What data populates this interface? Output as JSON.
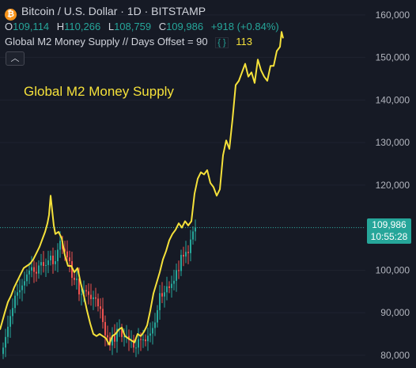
{
  "header": {
    "symbol_title": "Bitcoin / U.S. Dollar · 1D · BITSTAMP",
    "icon": "bitcoin-logo-icon",
    "ohlc": {
      "open_label": "O",
      "open": "109,114",
      "high_label": "H",
      "high": "110,266",
      "low_label": "L",
      "low": "108,759",
      "close_label": "C",
      "close": "109,986",
      "change": "+918 (+0.84%)"
    }
  },
  "indicator": {
    "label": "Global M2 Money Supply // Days Offset = 90",
    "settings_icon": "braces-icon",
    "value": "113"
  },
  "collapse_icon": "chevron-up-icon",
  "annotation": "Global M2 Money Supply",
  "price_tag": {
    "price": "109,986",
    "countdown": "10:55:28"
  },
  "colors": {
    "background": "#161a25",
    "up": "#26a69a",
    "down": "#ef5350",
    "m2_line": "#f5e13a",
    "text": "#d1d4dc"
  },
  "chart_data": {
    "type": "line",
    "yaxis_ticks": [
      80000,
      90000,
      100000,
      110000,
      120000,
      130000,
      140000,
      150000,
      160000
    ],
    "yaxis_tick_labels": [
      "80,000",
      "90,000",
      "100,000",
      "110,000",
      "120,000",
      "130,000",
      "140,000",
      "150,000",
      "160,000"
    ],
    "ylim": [
      77000,
      163500
    ],
    "axis_side": "right",
    "last_price": 109986,
    "series": [
      {
        "name": "Global M2 Money Supply",
        "type": "line",
        "color": "#f5e13a",
        "x": [
          0,
          3,
          6,
          10,
          14,
          18,
          22,
          26,
          30,
          34,
          38,
          42,
          46,
          50,
          54,
          57,
          60,
          62,
          64,
          66,
          68,
          70,
          74,
          78,
          82,
          86,
          90,
          94,
          98,
          102,
          106,
          110,
          114,
          118,
          122,
          126,
          130,
          134,
          138,
          142,
          146,
          150,
          154,
          158,
          162,
          166,
          170,
          174,
          178,
          182,
          186,
          190,
          194,
          198,
          202,
          206,
          210,
          214,
          218,
          222,
          226,
          230,
          234,
          238,
          242,
          246,
          250,
          254,
          258,
          262,
          266,
          270,
          274,
          278,
          282,
          286,
          290,
          294,
          298,
          302,
          306,
          310,
          314,
          318,
          322,
          326,
          330,
          334,
          338,
          342,
          346,
          350,
          354,
          356,
          358
        ],
        "values": [
          86000,
          88000,
          90000,
          92500,
          94000,
          96000,
          97500,
          99000,
          100500,
          101000,
          101500,
          102500,
          104000,
          105500,
          107500,
          109000,
          111000,
          113000,
          117500,
          114000,
          110500,
          108500,
          109000,
          107500,
          103500,
          101000,
          101000,
          99500,
          100500,
          97000,
          94000,
          90500,
          87500,
          85000,
          84500,
          85000,
          84500,
          84000,
          82500,
          84500,
          85000,
          86000,
          86500,
          84500,
          84000,
          83500,
          83000,
          85000,
          84500,
          85500,
          87000,
          90500,
          94500,
          97000,
          99500,
          102500,
          104500,
          107000,
          108500,
          109500,
          111000,
          110000,
          111500,
          110500,
          111500,
          118000,
          121500,
          123000,
          122500,
          123500,
          120500,
          119500,
          117500,
          119000,
          127000,
          130500,
          128500,
          135500,
          143500,
          144500,
          146500,
          148500,
          145500,
          146500,
          144000,
          149500,
          147000,
          145500,
          144500,
          148000,
          148000,
          151500,
          152500,
          156000,
          154500
        ]
      },
      {
        "name": "BTCUSD",
        "type": "candlestick",
        "x": [
          0,
          3,
          6,
          9,
          12,
          15,
          18,
          21,
          24,
          27,
          30,
          33,
          36,
          39,
          42,
          45,
          48,
          51,
          54,
          57,
          60,
          63,
          66,
          69,
          72,
          75,
          78,
          81,
          84,
          87,
          90,
          93,
          96,
          99,
          102,
          105,
          108,
          111,
          114,
          117,
          120,
          123,
          126,
          129,
          132,
          135,
          138,
          141,
          144,
          147,
          150,
          153,
          156,
          159,
          162,
          165,
          168,
          171,
          174,
          177,
          180,
          183,
          186,
          189,
          192,
          195,
          198,
          201,
          204,
          207,
          210,
          213,
          216,
          219,
          222,
          225,
          228,
          231,
          234,
          237,
          240,
          243
        ],
        "close": [
          81800,
          84300,
          86700,
          89200,
          91100,
          94000,
          94800,
          95300,
          96400,
          97400,
          99000,
          99900,
          100700,
          99600,
          99200,
          101100,
          101900,
          101000,
          101200,
          102300,
          103400,
          101400,
          102100,
          104800,
          106900,
          105000,
          104400,
          103000,
          102100,
          98200,
          97700,
          98000,
          94300,
          94400,
          95300,
          95000,
          94200,
          93200,
          93600,
          93300,
          91500,
          90900,
          87800,
          84700,
          84200,
          82300,
          84700,
          83200,
          86200,
          86200,
          84300,
          84400,
          84500,
          83600,
          83600,
          81800,
          81800,
          83800,
          83600,
          83700,
          83300,
          84600,
          85100,
          86400,
          87700,
          90600,
          94600,
          93800,
          94800,
          96200,
          95800,
          96800,
          97500,
          100000,
          99800,
          103600,
          103200,
          104300,
          104000,
          107200,
          109100,
          110000
        ]
      }
    ]
  }
}
